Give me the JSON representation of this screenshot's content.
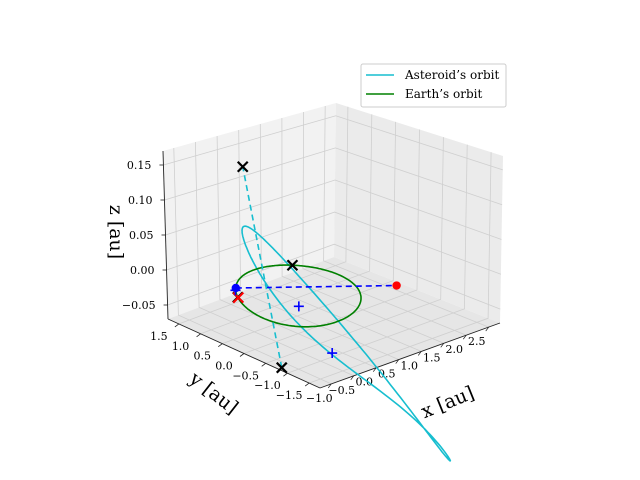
{
  "chart_data": {
    "type": "line",
    "projection": "3d",
    "xlabel": "x [au]",
    "ylabel": "y [au]",
    "zlabel": "z [au]",
    "grid": true,
    "legend_position": "top-right",
    "xlim": [
      -1.25,
      2.75
    ],
    "ylim": [
      -1.75,
      1.75
    ],
    "zlim": [
      -0.07,
      0.17
    ],
    "x_ticks": [
      "−1.0",
      "−0.5",
      "0.0",
      "0.5",
      "1.0",
      "1.5",
      "2.0",
      "2.5"
    ],
    "y_ticks": [
      "1.5",
      "1.0",
      "0.5",
      "0.0",
      "−0.5",
      "−1.0",
      "−1.5"
    ],
    "z_ticks": [
      "0.15",
      "0.10",
      "0.05",
      "0.00",
      "−0.05"
    ],
    "x_tick_values": [
      -1.0,
      -0.5,
      0.0,
      0.5,
      1.0,
      1.5,
      2.0,
      2.5
    ],
    "y_tick_values": [
      1.5,
      1.0,
      0.5,
      0.0,
      -0.5,
      -1.0,
      -1.5
    ],
    "z_tick_values": [
      0.15,
      0.1,
      0.05,
      0.0,
      -0.05
    ],
    "series": [
      {
        "name": "Asteroid’s orbit",
        "color": "#17becf",
        "orbit": {
          "semi_major_axis": 1.66,
          "eccentricity": 0.47,
          "inclination_deg": 6.5,
          "perihelion_longitude_deg": 140,
          "ascending_node_deg": 55
        }
      },
      {
        "name": "Earth’s orbit",
        "color": "#008000",
        "orbit": {
          "semi_major_axis": 1.0,
          "eccentricity": 0.0,
          "inclination_deg": 0,
          "perihelion_longitude_deg": 0,
          "ascending_node_deg": 0
        }
      }
    ],
    "dashed_lines": [
      {
        "color": "#0000ff",
        "from": [
          -0.67,
          0.74,
          0.0
        ],
        "to": [
          2.44,
          0.15,
          -0.06
        ]
      },
      {
        "color": "#17becf",
        "from": [
          -1.28,
          -0.9,
          -0.06
        ],
        "to": [
          0.33,
          1.51,
          0.13
        ]
      }
    ],
    "points": [
      {
        "marker": "circle",
        "color": "#0000ff",
        "xyz": [
          -0.67,
          0.74,
          0.0
        ]
      },
      {
        "marker": "circle",
        "color": "#ff0000",
        "xyz": [
          2.44,
          0.15,
          -0.06
        ]
      },
      {
        "marker": "x",
        "color": "#000000",
        "xyz": [
          0.33,
          1.51,
          0.13
        ]
      },
      {
        "marker": "x",
        "color": "#000000",
        "xyz": [
          -1.28,
          -0.9,
          -0.06
        ]
      },
      {
        "marker": "x",
        "color": "#000000",
        "xyz": [
          0.66,
          0.75,
          0.0
        ]
      },
      {
        "marker": "x",
        "color": "#000000",
        "xyz": [
          -0.86,
          0.51,
          0.0
        ]
      },
      {
        "marker": "x",
        "color": "#ff0000",
        "xyz": [
          -0.86,
          0.5,
          0.0
        ]
      },
      {
        "marker": "plus",
        "color": "#0000ff",
        "xyz": [
          -0.73,
          0.69,
          0.0
        ]
      },
      {
        "marker": "plus",
        "color": "#0000ff",
        "xyz": [
          0.0,
          -0.02,
          -0.02
        ]
      },
      {
        "marker": "plus",
        "color": "#0000ff",
        "xyz": [
          -0.68,
          -1.44,
          -0.02
        ]
      }
    ]
  }
}
